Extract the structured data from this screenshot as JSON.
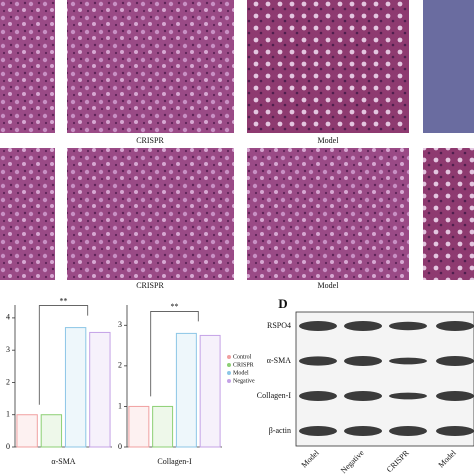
{
  "histology": {
    "row1_labels": [
      "CRISPR",
      "Model"
    ],
    "row2_labels": [
      "CRISPR",
      "Model"
    ]
  },
  "chart_data": [
    {
      "type": "bar",
      "xlabel": "α-SMA",
      "categories": [
        "Control",
        "CRISPR",
        "Model",
        "Negative"
      ],
      "colors": [
        "#f0a0a0",
        "#8ccf74",
        "#8cc6e6",
        "#c4a2e6"
      ],
      "values": [
        1,
        1,
        3.7,
        3.55
      ],
      "ylim": [
        0,
        4.4
      ],
      "yticks": [
        0,
        1,
        2,
        3,
        4
      ],
      "annotation": "**"
    },
    {
      "type": "bar",
      "xlabel": "Collagen-I",
      "categories": [
        "Control",
        "CRISPR",
        "Model",
        "Negative"
      ],
      "colors": [
        "#f0a0a0",
        "#8ccf74",
        "#8cc6e6",
        "#c4a2e6"
      ],
      "values": [
        1,
        1,
        2.8,
        2.75
      ],
      "ylim": [
        0,
        3.5
      ],
      "yticks": [
        0,
        1,
        2,
        3
      ],
      "annotation": "**"
    }
  ],
  "blot": {
    "label": "D",
    "rows": [
      "RSPO4",
      "α-SMA",
      "Collagen-I",
      "β-actin"
    ],
    "columns": [
      "Model",
      "Negative",
      "CRISPR",
      "Model"
    ]
  }
}
